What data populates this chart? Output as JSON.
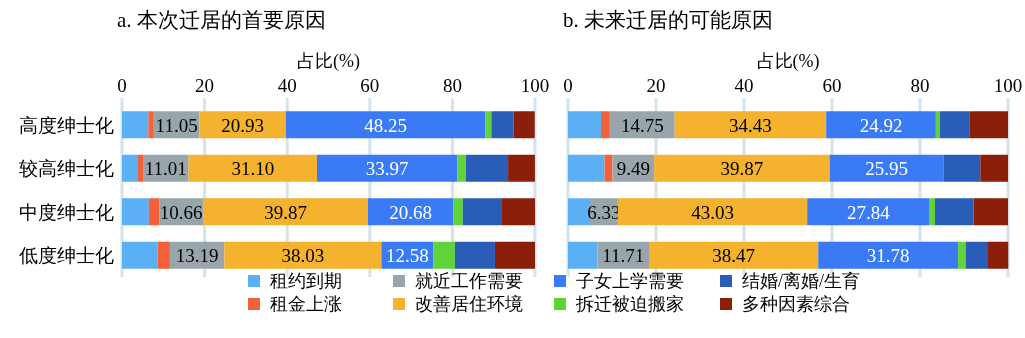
{
  "chart_data": [
    {
      "type": "bar",
      "orientation": "horizontal",
      "stacked": true,
      "title": "a. 本次迁居的首要原因",
      "xlabel": "占比(%)",
      "categories": [
        "高度绅士化",
        "较高绅士化",
        "中度绅士化",
        "低度绅士化"
      ],
      "xlim": [
        0,
        100
      ],
      "xticks": [
        0,
        20,
        40,
        60,
        80,
        100
      ],
      "grid": "x",
      "legend": "bottom",
      "series": [
        {
          "name": "租约到期",
          "color": "#5aaff5",
          "values": [
            6.4,
            3.7,
            6.5,
            8.6
          ]
        },
        {
          "name": "租金上涨",
          "color": "#f4603a",
          "values": [
            1.3,
            1.4,
            2.5,
            3.0
          ]
        },
        {
          "name": "就近工作需要",
          "color": "#98a6ac",
          "values": [
            11.05,
            11.01,
            10.66,
            13.19
          ],
          "value_labels": [
            "11.05",
            "11.01",
            "10.66",
            "13.19"
          ]
        },
        {
          "name": "改善居住环境",
          "color": "#f4b22e",
          "values": [
            20.93,
            31.1,
            39.87,
            38.03
          ],
          "value_labels": [
            "20.93",
            "31.10",
            "39.87",
            "38.03"
          ]
        },
        {
          "name": "子女上学需要",
          "color": "#3a7af5",
          "values": [
            48.25,
            33.97,
            20.68,
            12.58
          ],
          "value_labels": [
            "48.25",
            "33.97",
            "20.68",
            "12.58"
          ]
        },
        {
          "name": "拆迁被迫搬家",
          "color": "#5fd43a",
          "values": [
            1.5,
            2.1,
            2.3,
            5.2
          ]
        },
        {
          "name": "结婚/离婚/生育",
          "color": "#2a5db8",
          "values": [
            5.4,
            10.2,
            9.3,
            9.7
          ]
        },
        {
          "name": "多种因素综合",
          "color": "#8b1f0a",
          "values": [
            5.1,
            6.5,
            8.2,
            9.7
          ]
        }
      ]
    },
    {
      "type": "bar",
      "orientation": "horizontal",
      "stacked": true,
      "title": "b. 未来迁居的可能原因",
      "xlabel": "占比(%)",
      "categories": [
        null,
        null,
        null,
        null
      ],
      "xlim": [
        0,
        100
      ],
      "xticks": [
        0,
        20,
        40,
        60,
        80,
        100
      ],
      "grid": "x",
      "tick_labels": "x",
      "series": [
        {
          "color": "#5aaff5",
          "values": [
            7.5,
            8.3,
            5.0,
            6.7
          ]
        },
        {
          "color": "#f4603a",
          "values": [
            2.0,
            1.8,
            0,
            0
          ]
        },
        {
          "color": "#98a6ac",
          "values": [
            14.75,
            9.49,
            6.33,
            11.71
          ],
          "value_labels": [
            "14.75",
            "9.49",
            "6.33",
            "11.71"
          ]
        },
        {
          "color": "#f4b22e",
          "values": [
            34.43,
            39.87,
            43.03,
            38.47
          ],
          "value_labels": [
            "34.43",
            "39.87",
            "43.03",
            "38.47"
          ]
        },
        {
          "color": "#3a7af5",
          "values": [
            24.92,
            25.95,
            27.84,
            31.78
          ],
          "value_labels": [
            "24.92",
            "25.95",
            "27.84",
            "31.78"
          ]
        },
        {
          "color": "#5fd43a",
          "values": [
            0.9,
            0,
            1.2,
            1.7
          ]
        },
        {
          "color": "#2a5db8",
          "values": [
            6.7,
            8.3,
            8.8,
            4.9
          ]
        },
        {
          "color": "#8b1f0a",
          "values": [
            8.8,
            6.3,
            7.8,
            4.8
          ]
        }
      ]
    }
  ]
}
